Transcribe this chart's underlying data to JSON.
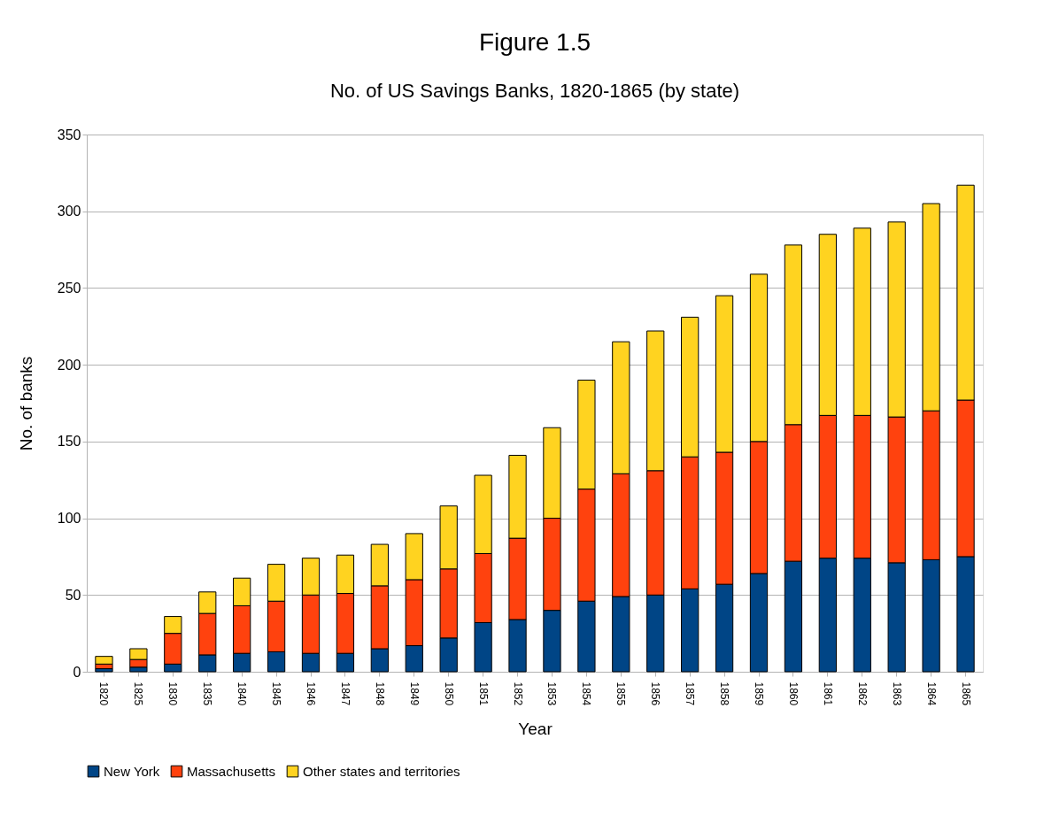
{
  "chart_data": {
    "type": "bar",
    "title": "Figure 1.5",
    "subtitle": "No. of US Savings Banks, 1820-1865 (by state)",
    "xlabel": "Year",
    "ylabel": "No. of banks",
    "categories": [
      "1820",
      "1825",
      "1830",
      "1835",
      "1840",
      "1845",
      "1846",
      "1847",
      "1848",
      "1849",
      "1850",
      "1851",
      "1852",
      "1853",
      "1854",
      "1855",
      "1856",
      "1857",
      "1858",
      "1859",
      "1860",
      "1861",
      "1862",
      "1863",
      "1864",
      "1865"
    ],
    "stacked": true,
    "series": [
      {
        "name": "New York",
        "color": "#004586",
        "values": [
          2,
          3,
          5,
          11,
          12,
          13,
          12,
          12,
          15,
          17,
          22,
          32,
          34,
          40,
          46,
          49,
          50,
          54,
          57,
          64,
          72,
          74,
          74,
          71,
          73,
          75
        ]
      },
      {
        "name": "Massachusetts",
        "color": "#ff420e",
        "values": [
          3,
          5,
          20,
          27,
          31,
          33,
          38,
          39,
          41,
          43,
          45,
          45,
          53,
          60,
          73,
          80,
          81,
          86,
          86,
          86,
          89,
          93,
          93,
          95,
          97,
          102
        ]
      },
      {
        "name": "Other states and territories",
        "color": "#ffd320",
        "values": [
          5,
          7,
          11,
          14,
          18,
          24,
          24,
          25,
          27,
          30,
          41,
          51,
          54,
          59,
          71,
          86,
          91,
          91,
          102,
          109,
          117,
          118,
          122,
          127,
          135,
          140
        ]
      }
    ],
    "ylim": [
      0,
      350
    ],
    "yticks": [
      0,
      50,
      100,
      150,
      200,
      250,
      300,
      350
    ],
    "grid": "y",
    "legend": "bottom"
  }
}
